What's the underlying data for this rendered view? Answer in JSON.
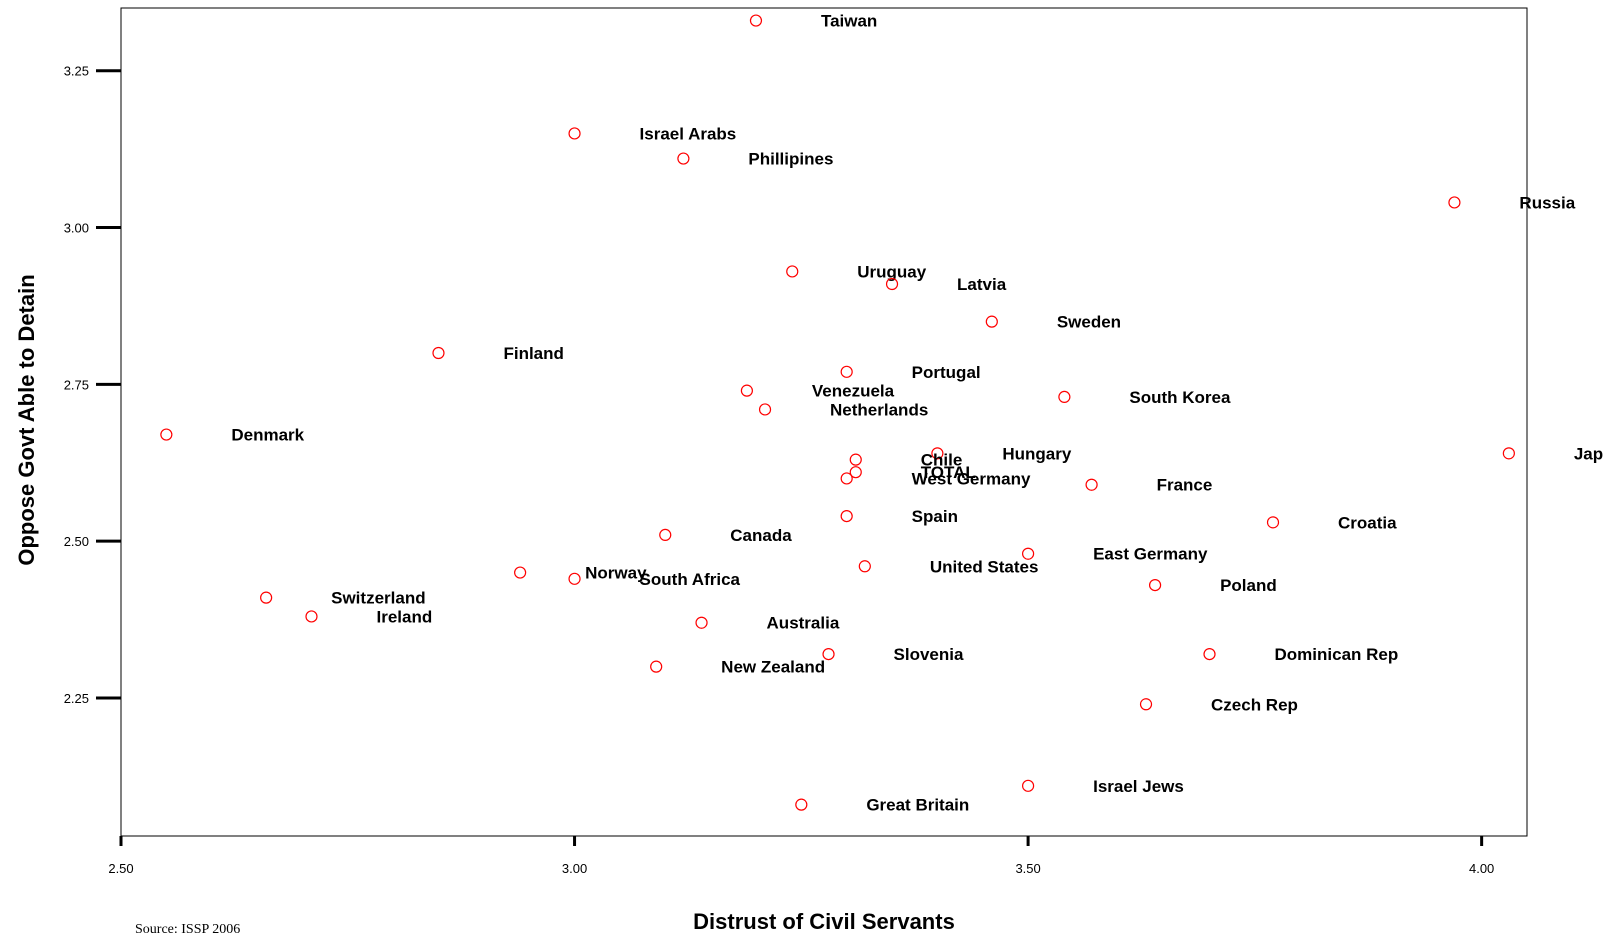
{
  "chart_data": {
    "type": "scatter",
    "xlabel": "Distrust of Civil Servants",
    "ylabel": "Oppose Govt Able to Detain",
    "xlim": [
      2.5,
      4.05
    ],
    "ylim": [
      2.03,
      3.35
    ],
    "xticks": [
      "2.50",
      "3.00",
      "3.50",
      "4.00"
    ],
    "yticks": [
      "2.25",
      "2.50",
      "2.75",
      "3.00",
      "3.25"
    ],
    "grid": false,
    "marker_color": "#ff0000",
    "source": "Source: ISSP 2006",
    "points": [
      {
        "label": "Taiwan",
        "x": 3.2,
        "y": 3.33
      },
      {
        "label": "Israel Arabs",
        "x": 3.0,
        "y": 3.15
      },
      {
        "label": "Phillipines",
        "x": 3.12,
        "y": 3.11
      },
      {
        "label": "Russia",
        "x": 3.97,
        "y": 3.04
      },
      {
        "label": "Uruguay",
        "x": 3.24,
        "y": 2.93
      },
      {
        "label": "Latvia",
        "x": 3.35,
        "y": 2.91
      },
      {
        "label": "Sweden",
        "x": 3.46,
        "y": 2.85
      },
      {
        "label": "Finland",
        "x": 2.85,
        "y": 2.8
      },
      {
        "label": "Portugal",
        "x": 3.3,
        "y": 2.77
      },
      {
        "label": "Venezuela",
        "x": 3.19,
        "y": 2.74
      },
      {
        "label": "South Korea",
        "x": 3.54,
        "y": 2.73
      },
      {
        "label": "Netherlands",
        "x": 3.21,
        "y": 2.71
      },
      {
        "label": "Denmark",
        "x": 2.55,
        "y": 2.67
      },
      {
        "label": "Hungary",
        "x": 3.4,
        "y": 2.64
      },
      {
        "label": "Japan",
        "x": 4.03,
        "y": 2.64
      },
      {
        "label": "Chile",
        "x": 3.31,
        "y": 2.63
      },
      {
        "label": "TOTAL",
        "x": 3.31,
        "y": 2.61
      },
      {
        "label": "West Germany",
        "x": 3.3,
        "y": 2.6
      },
      {
        "label": "France",
        "x": 3.57,
        "y": 2.59
      },
      {
        "label": "Spain",
        "x": 3.3,
        "y": 2.54
      },
      {
        "label": "Croatia",
        "x": 3.77,
        "y": 2.53
      },
      {
        "label": "Canada",
        "x": 3.1,
        "y": 2.51
      },
      {
        "label": "East Germany",
        "x": 3.5,
        "y": 2.48
      },
      {
        "label": "United States",
        "x": 3.32,
        "y": 2.46
      },
      {
        "label": "Norway",
        "x": 2.94,
        "y": 2.45
      },
      {
        "label": "South Africa",
        "x": 3.0,
        "y": 2.44
      },
      {
        "label": "Poland",
        "x": 3.64,
        "y": 2.43
      },
      {
        "label": "Switzerland",
        "x": 2.66,
        "y": 2.41
      },
      {
        "label": "Ireland",
        "x": 2.71,
        "y": 2.38
      },
      {
        "label": "Australia",
        "x": 3.14,
        "y": 2.37
      },
      {
        "label": "Slovenia",
        "x": 3.28,
        "y": 2.32
      },
      {
        "label": "Dominican Rep",
        "x": 3.7,
        "y": 2.32
      },
      {
        "label": "New Zealand",
        "x": 3.09,
        "y": 2.3
      },
      {
        "label": "Czech Rep",
        "x": 3.63,
        "y": 2.24
      },
      {
        "label": "Israel Jews",
        "x": 3.5,
        "y": 2.11
      },
      {
        "label": "Great Britain",
        "x": 3.25,
        "y": 2.08
      }
    ]
  }
}
